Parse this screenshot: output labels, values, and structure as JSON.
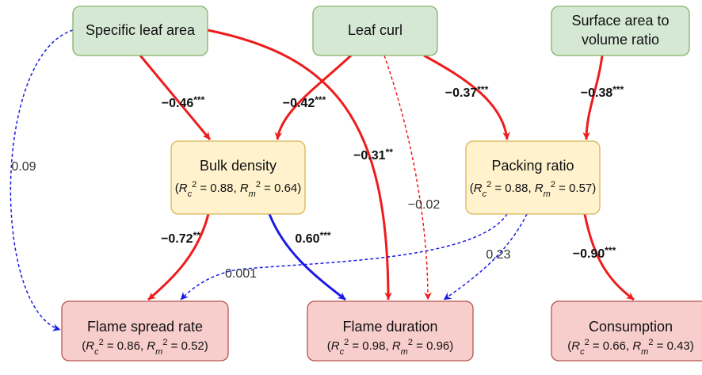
{
  "nodes": [
    {
      "lines": [
        "Specific leaf area"
      ]
    },
    {
      "lines": [
        "Leaf curl"
      ]
    },
    {
      "lines": [
        "Surface area to",
        "volume ratio"
      ]
    },
    {
      "lines": [
        "Bulk density"
      ],
      "stats": {
        "open": "(",
        "terms": [
          {
            "symbol": "R",
            "sub": "c",
            "sup": "2",
            "value": " = 0.88"
          },
          {
            "symbol": "R",
            "sub": "m",
            "sup": "2",
            "value": " = 0.64"
          }
        ],
        "sep": ", ",
        "close": ")"
      }
    },
    {
      "lines": [
        "Packing ratio"
      ],
      "stats": {
        "open": "(",
        "terms": [
          {
            "symbol": "R",
            "sub": "c",
            "sup": "2",
            "value": " = 0.88"
          },
          {
            "symbol": "R",
            "sub": "m",
            "sup": "2",
            "value": " = 0.57"
          }
        ],
        "sep": ", ",
        "close": ")"
      }
    },
    {
      "lines": [
        "Flame spread rate"
      ],
      "stats": {
        "open": "(",
        "terms": [
          {
            "symbol": "R",
            "sub": "c",
            "sup": "2",
            "value": " = 0.86"
          },
          {
            "symbol": "R",
            "sub": "m",
            "sup": "2",
            "value": " = 0.52"
          }
        ],
        "sep": ", ",
        "close": ")"
      }
    },
    {
      "lines": [
        "Flame duration"
      ],
      "stats": {
        "open": "(",
        "terms": [
          {
            "symbol": "R",
            "sub": "c",
            "sup": "2",
            "value": " = 0.98"
          },
          {
            "symbol": "R",
            "sub": "m",
            "sup": "2",
            "value": " = 0.96"
          }
        ],
        "sep": ", ",
        "close": ")"
      }
    },
    {
      "lines": [
        "Consumption"
      ],
      "stats": {
        "open": "(",
        "terms": [
          {
            "symbol": "R",
            "sub": "c",
            "sup": "2",
            "value": " = 0.66"
          },
          {
            "symbol": "R",
            "sub": "m",
            "sup": "2",
            "value": " = 0.43"
          }
        ],
        "sep": ", ",
        "close": ")"
      }
    }
  ],
  "edges": [
    {
      "coef": "−0.46",
      "sig": "***"
    },
    {
      "coef": "−0.42",
      "sig": "***"
    },
    {
      "coef": "−0.31",
      "sig": "**"
    },
    {
      "coef": "−0.02"
    },
    {
      "coef": "−0.37",
      "sig": "***"
    },
    {
      "coef": "−0.38",
      "sig": "***"
    },
    {
      "coef": "0.09"
    },
    {
      "coef": "−0.72",
      "sig": "**"
    },
    {
      "coef": "0.60",
      "sig": "***"
    },
    {
      "coef": "0.001"
    },
    {
      "coef": "0.23"
    },
    {
      "coef": "−0.90",
      "sig": "***"
    }
  ]
}
